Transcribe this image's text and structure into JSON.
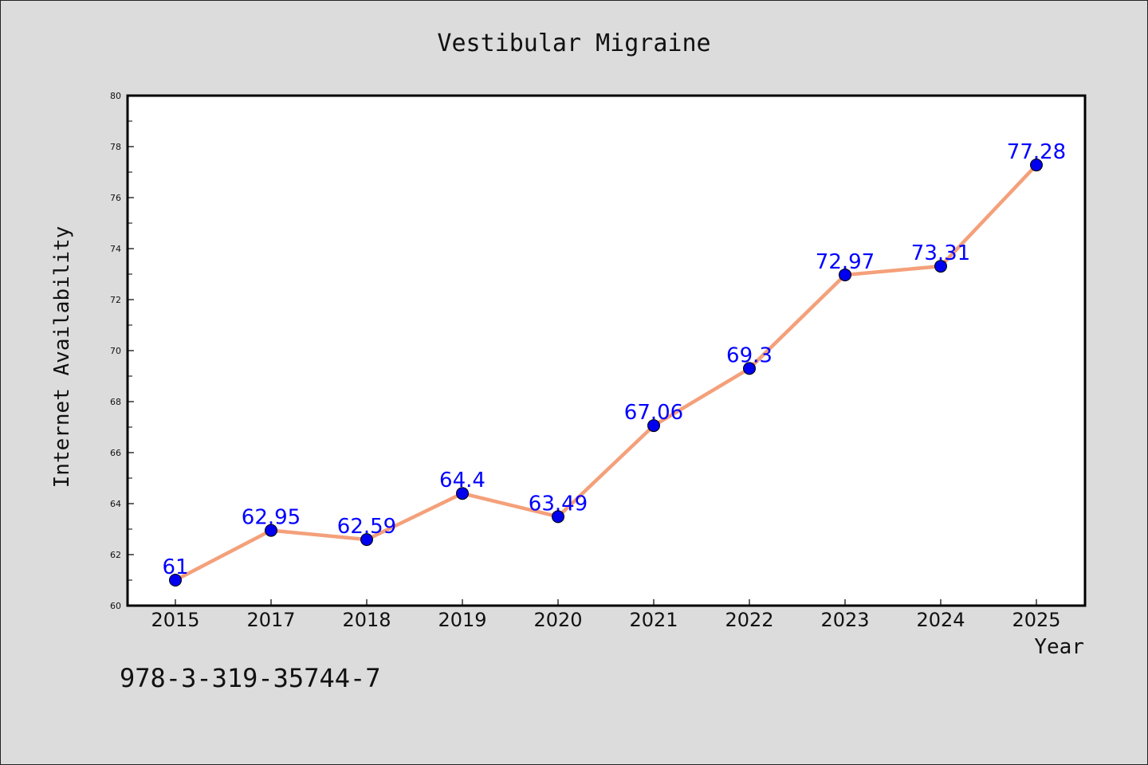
{
  "chart_data": {
    "type": "line",
    "title": "Vestibular Migraine",
    "xlabel": "Year",
    "ylabel": "Internet Availability",
    "categories": [
      "2015",
      "2017",
      "2018",
      "2019",
      "2020",
      "2021",
      "2022",
      "2023",
      "2024",
      "2025"
    ],
    "series": [
      {
        "values": [
          61,
          62.95,
          62.59,
          64.4,
          63.49,
          67.06,
          69.3,
          72.97,
          73.31,
          77.28
        ],
        "labels": [
          "61",
          "62.95",
          "62.59",
          "64.4",
          "63.49",
          "67.06",
          "69.3",
          "72.97",
          "73.31",
          "77.28"
        ],
        "line_color": "#f4a07a",
        "marker_color": "#0000ee",
        "label_color": "#0000ff"
      }
    ],
    "ylim": [
      60,
      80
    ],
    "yticks": [
      "60",
      "62",
      "64",
      "66",
      "68",
      "70",
      "72",
      "74",
      "76",
      "78",
      "80"
    ],
    "grid": false,
    "legend": "none"
  },
  "footer": {
    "isbn": "978-3-319-35744-7"
  },
  "colors": {
    "background": "#dcdcdc",
    "plot_background": "#ffffff",
    "axis": "#000000"
  }
}
